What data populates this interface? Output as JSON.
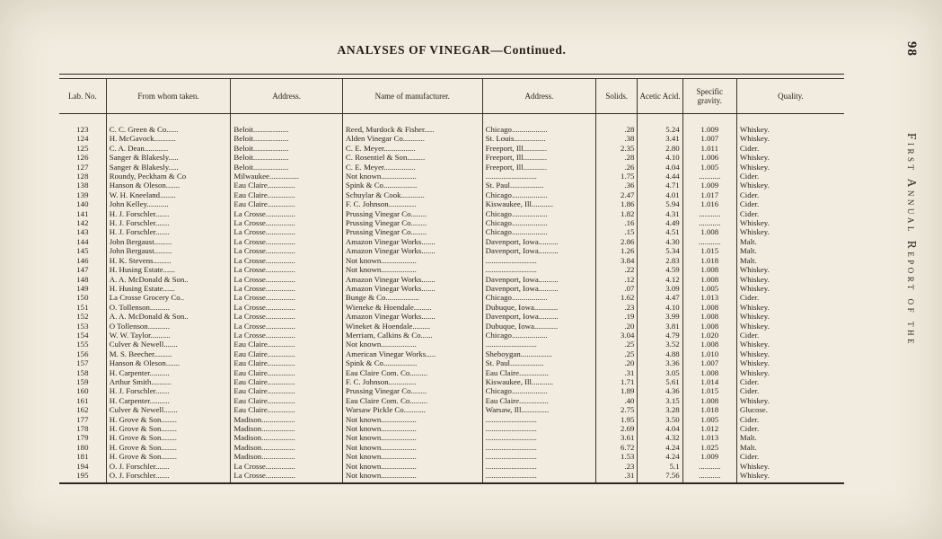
{
  "page": {
    "title": "ANALYSES OF VINEGAR—Continued.",
    "page_number": "98",
    "side_text": "First Annual Report of the"
  },
  "table": {
    "headers": [
      "Lab. No.",
      "From whom taken.",
      "Address.",
      "Name of manufacturer.",
      "Address.",
      "Solids.",
      "Acetic Acid.",
      "Specific gravity.",
      "Quality."
    ],
    "rows": [
      [
        "123",
        "C. C. Green & Co......",
        "Beloit..................",
        "Reed, Murdock & Fisher.....",
        "Chicago..................",
        ".28",
        "5.24",
        "1.009",
        "Whiskey."
      ],
      [
        "124",
        "H. McGavock...........",
        "Beloit..................",
        "Alden Vinegar Co...........",
        "St. Louis................",
        ".38",
        "3.41",
        "1.007",
        "Whiskey."
      ],
      [
        "125",
        "C. A. Dean............",
        "Beloit..................",
        "C. E. Meyer................",
        "Freeport, Ill............",
        "2.35",
        "2.80",
        "1.011",
        "Cider."
      ],
      [
        "126",
        "Sanger & Blakesly.....",
        "Beloit..................",
        "C. Rosentiel & Son.........",
        "Freeport, Ill............",
        ".28",
        "4.10",
        "1.006",
        "Whiskey."
      ],
      [
        "127",
        "Sanger & Blakesly.....",
        "Beloit..................",
        "C. E. Meyer................",
        "Freeport, Ill............",
        ".26",
        "4.04",
        "1.005",
        "Whiskey."
      ],
      [
        "128",
        "Roundy, Peckham & Co",
        "Milwaukee...............",
        "Not known..................",
        "..........................",
        "1.75",
        "4.44",
        "...........",
        "Cider."
      ],
      [
        "138",
        "Hanson & Oleson.......",
        "Eau Claire..............",
        "Spink & Co.................",
        "St. Paul.................",
        ".36",
        "4.71",
        "1.009",
        "Whiskey."
      ],
      [
        "139",
        "W. H. Kneeland........",
        "Eau Claire..............",
        "Schuylar & Cook............",
        "Chicago..................",
        "2.47",
        "4.01",
        "1.017",
        "Cider."
      ],
      [
        "140",
        "John Kelley...........",
        "Eau Claire..............",
        "F. C. Johnson..............",
        "Kiswaukee, Ill...........",
        "1.86",
        "5.94",
        "1.016",
        "Cider."
      ],
      [
        "141",
        "H. J. Forschler.......",
        "La Crosse...............",
        "Prussing Vinegar Co........",
        "Chicago..................",
        "1.82",
        "4.31",
        "...........",
        "Cider."
      ],
      [
        "142",
        "H. J. Forschler.......",
        "La Crosse...............",
        "Prussing Vinegar Co........",
        "Chicago..................",
        ".16",
        "4.49",
        "...........",
        "Whiskey."
      ],
      [
        "143",
        "H. J. Forschler.......",
        "La Crosse...............",
        "Prussing Vinegar Co........",
        "Chicago..................",
        ".15",
        "4.51",
        "1.008",
        "Whiskey."
      ],
      [
        "144",
        "John Bergaust.........",
        "La Crosse...............",
        "Amazon Vinegar Works.......",
        "Davenport, Iowa..........",
        "2.86",
        "4.30",
        "...........",
        "Malt."
      ],
      [
        "145",
        "John Bergaust.........",
        "La Crosse...............",
        "Amazon Vinegar Works.......",
        "Davenport, Iowa..........",
        "1.26",
        "5.34",
        "1.015",
        "Malt."
      ],
      [
        "146",
        "H. K. Stevens.........",
        "La Crosse...............",
        "Not known..................",
        "..........................",
        "3.84",
        "2.83",
        "1.018",
        "Malt."
      ],
      [
        "147",
        "H. Husing Estate......",
        "La Crosse...............",
        "Not known..................",
        "..........................",
        ".22",
        "4.59",
        "1.008",
        "Whiskey."
      ],
      [
        "148",
        "A. A. McDonald & Son..",
        "La Crosse...............",
        "Amazon Vinegar Works.......",
        "Davenport, Iowa..........",
        ".12",
        "4.12",
        "1.008",
        "Whiskey."
      ],
      [
        "149",
        "H. Husing Estate......",
        "La Crosse...............",
        "Amazon Vinegar Works.......",
        "Davenport, Iowa..........",
        ".07",
        "3.09",
        "1.005",
        "Whiskey."
      ],
      [
        "150",
        "La Crosse Grocery Co..",
        "La Crosse...............",
        "Bunge & Co.................",
        "Chicago..................",
        "1.62",
        "4.47",
        "1.013",
        "Cider."
      ],
      [
        "151",
        "O. Tollenson..........",
        "La Crosse...............",
        "Wieneke & Hoendale.........",
        "Dubuque, Iowa............",
        ".23",
        "4.10",
        "1.008",
        "Whiskey."
      ],
      [
        "152",
        "A. A. McDonald & Son..",
        "La Crosse...............",
        "Amazon Vinegar Works.......",
        "Davenport, Iowa..........",
        ".19",
        "3.99",
        "1.008",
        "Whiskey."
      ],
      [
        "153",
        "O Tollenson...........",
        "La Crosse...............",
        "Wineket & Hoendale.........",
        "Dubuque, Iowa............",
        ".20",
        "3.81",
        "1.008",
        "Whiskey."
      ],
      [
        "154",
        "W. W. Taylor..........",
        "La Crosse...............",
        "Merriam, Calkins & Co......",
        "Chicago..................",
        "3.04",
        "4.79",
        "1.020",
        "Cider."
      ],
      [
        "155",
        "Culver & Newell.......",
        "Eau Claire..............",
        "Not known..................",
        "..........................",
        ".25",
        "3.52",
        "1.008",
        "Whiskey."
      ],
      [
        "156",
        "M. S. Beecher.........",
        "Eau Claire..............",
        "American Vinegar Works.....",
        "Sheboygan................",
        ".25",
        "4.88",
        "1.010",
        "Whiskey."
      ],
      [
        "157",
        "Hanson & Oleson.......",
        "Eau Claire..............",
        "Spink & Co.................",
        "St. Paul.................",
        ".20",
        "3.36",
        "1.007",
        "Whiskey."
      ],
      [
        "158",
        "H. Carpenter..........",
        "Eau Claire..............",
        "Eau Claire Com. Co.........",
        "Eau Claire...............",
        ".31",
        "3.05",
        "1.008",
        "Whiskey."
      ],
      [
        "159",
        "Arthur Smith..........",
        "Eau Claire..............",
        "F. C. Johnson..............",
        "Kiswaukee, Ill...........",
        "1.71",
        "5.61",
        "1.014",
        "Cider."
      ],
      [
        "160",
        "H. J. Forschler.......",
        "Eau Claire..............",
        "Prussing Vinegar Co........",
        "Chicago..................",
        "1.89",
        "4.36",
        "1.015",
        "Cider."
      ],
      [
        "161",
        "H. Carpenter..........",
        "Eau Claire..............",
        "Eau Claire Com. Co.........",
        "Eau Claire...............",
        ".40",
        "3.15",
        "1.008",
        "Whiskey."
      ],
      [
        "162",
        "Culver & Newell.......",
        "Eau Claire..............",
        "Warsaw Pickle Co...........",
        "Warsaw, Ill..............",
        "2.75",
        "3.28",
        "1.018",
        "Glucose."
      ],
      [
        "177",
        "H. Grove & Son........",
        "Madison.................",
        "Not known..................",
        "..........................",
        "1.95",
        "3.50",
        "1.005",
        "Cider."
      ],
      [
        "178",
        "H. Grove & Son........",
        "Madison.................",
        "Not known..................",
        "..........................",
        "2.69",
        "4.04",
        "1.012",
        "Cider."
      ],
      [
        "179",
        "H. Grove & Son........",
        "Madison.................",
        "Not known..................",
        "..........................",
        "3.61",
        "4.32",
        "1.013",
        "Malt."
      ],
      [
        "180",
        "H. Grove & Son........",
        "Madison.................",
        "Not known..................",
        "..........................",
        "6.72",
        "4.24",
        "1.025",
        "Malt."
      ],
      [
        "181",
        "H. Grove & Son........",
        "Madison.................",
        "Not known..................",
        "..........................",
        "1.53",
        "4.24",
        "1.009",
        "Cider."
      ],
      [
        "194",
        "O. J. Forschler.......",
        "La Crosse...............",
        "Not known..................",
        "..........................",
        ".23",
        "5.1",
        "...........",
        "Whiskey."
      ],
      [
        "195",
        "O. J. Forschler.......",
        "La Crosse...............",
        "Not known..................",
        "..........................",
        ".31",
        "7.56",
        "...........",
        "Whiskey."
      ]
    ]
  }
}
